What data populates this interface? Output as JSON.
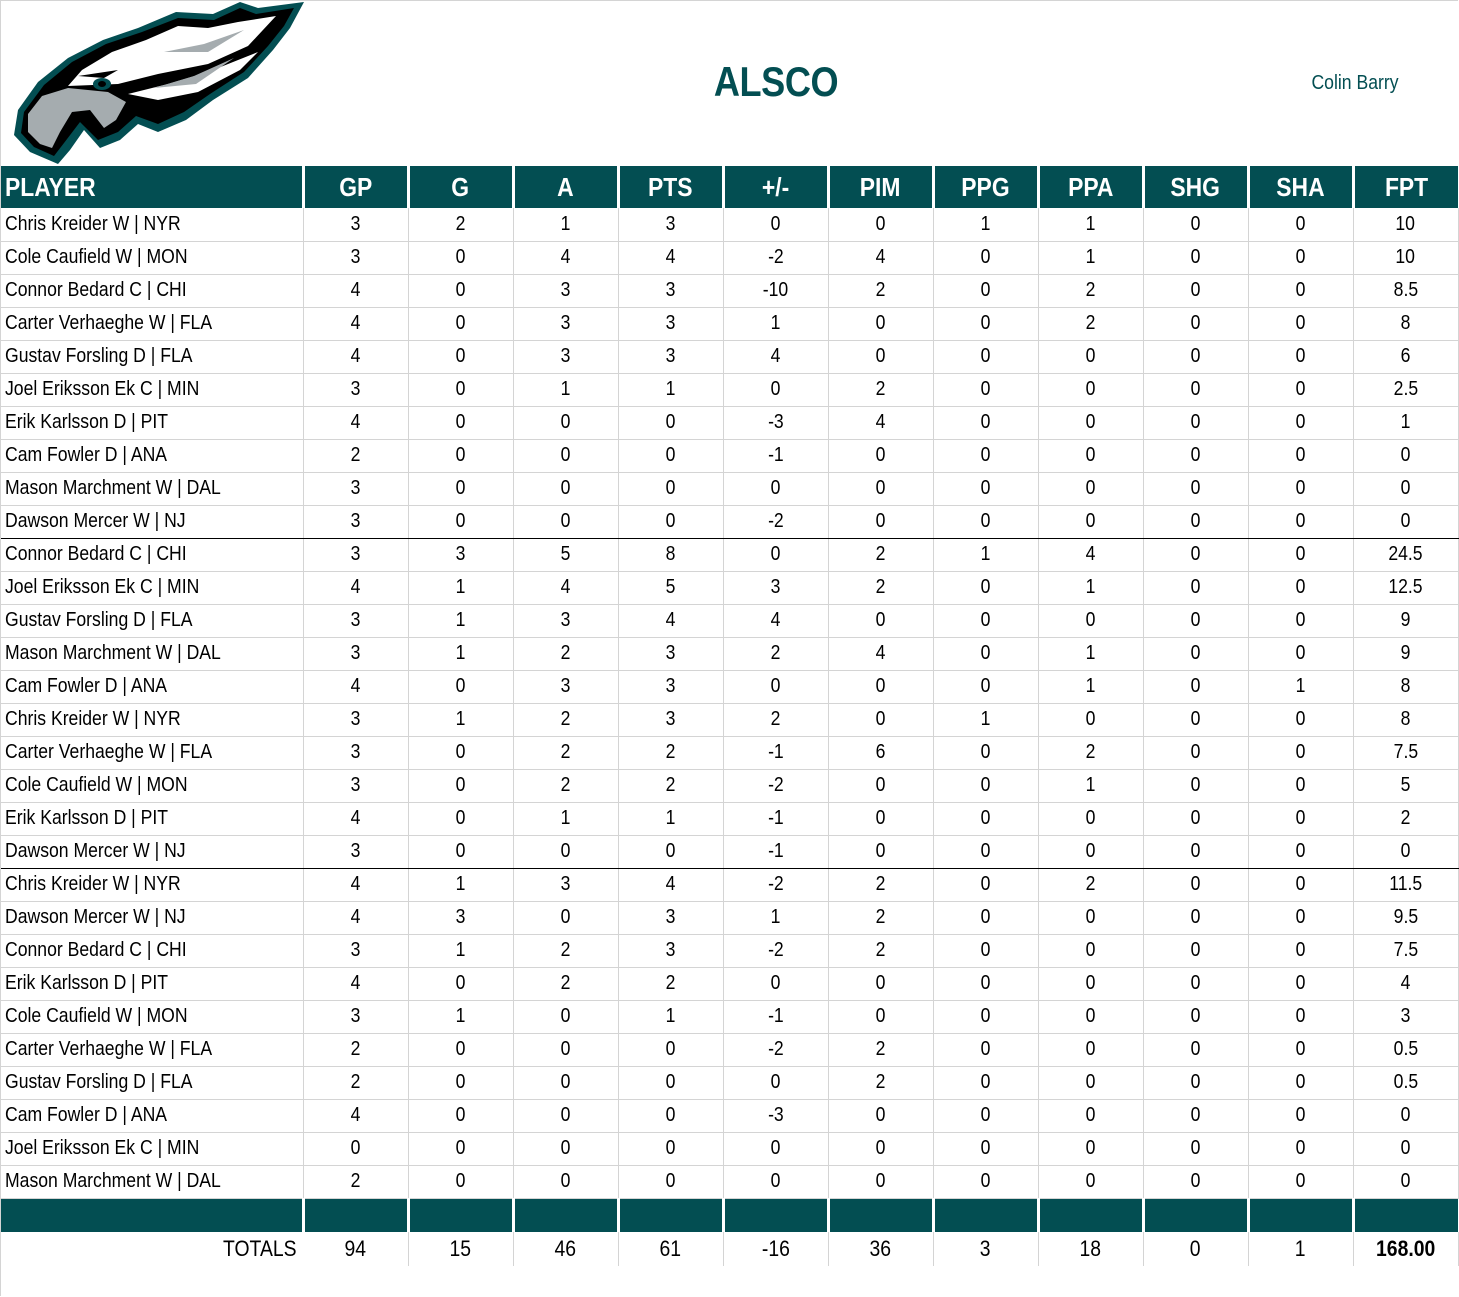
{
  "header": {
    "logo": "eagle-logo",
    "team_name": "ALSCO",
    "owner_name": "Colin Barry"
  },
  "colors": {
    "header_bg": "#034e52",
    "header_text": "#ffffff",
    "title_color": "#034e52",
    "grid_line": "#d4d4d4"
  },
  "table": {
    "columns": [
      "PLAYER",
      "GP",
      "G",
      "A",
      "PTS",
      "+/-",
      "PIM",
      "PPG",
      "PPA",
      "SHG",
      "SHA",
      "FPT"
    ],
    "groups": [
      {
        "rows": [
          [
            "Chris Kreider W | NYR",
            "3",
            "2",
            "1",
            "3",
            "0",
            "0",
            "1",
            "1",
            "0",
            "0",
            "10"
          ],
          [
            "Cole Caufield W | MON",
            "3",
            "0",
            "4",
            "4",
            "-2",
            "4",
            "0",
            "1",
            "0",
            "0",
            "10"
          ],
          [
            "Connor Bedard C | CHI",
            "4",
            "0",
            "3",
            "3",
            "-10",
            "2",
            "0",
            "2",
            "0",
            "0",
            "8.5"
          ],
          [
            "Carter Verhaeghe W | FLA",
            "4",
            "0",
            "3",
            "3",
            "1",
            "0",
            "0",
            "2",
            "0",
            "0",
            "8"
          ],
          [
            "Gustav Forsling D | FLA",
            "4",
            "0",
            "3",
            "3",
            "4",
            "0",
            "0",
            "0",
            "0",
            "0",
            "6"
          ],
          [
            "Joel Eriksson Ek C | MIN",
            "3",
            "0",
            "1",
            "1",
            "0",
            "2",
            "0",
            "0",
            "0",
            "0",
            "2.5"
          ],
          [
            "Erik Karlsson D | PIT",
            "4",
            "0",
            "0",
            "0",
            "-3",
            "4",
            "0",
            "0",
            "0",
            "0",
            "1"
          ],
          [
            "Cam Fowler D | ANA",
            "2",
            "0",
            "0",
            "0",
            "-1",
            "0",
            "0",
            "0",
            "0",
            "0",
            "0"
          ],
          [
            "Mason Marchment W | DAL",
            "3",
            "0",
            "0",
            "0",
            "0",
            "0",
            "0",
            "0",
            "0",
            "0",
            "0"
          ],
          [
            "Dawson Mercer W | NJ",
            "3",
            "0",
            "0",
            "0",
            "-2",
            "0",
            "0",
            "0",
            "0",
            "0",
            "0"
          ]
        ]
      },
      {
        "rows": [
          [
            "Connor Bedard C | CHI",
            "3",
            "3",
            "5",
            "8",
            "0",
            "2",
            "1",
            "4",
            "0",
            "0",
            "24.5"
          ],
          [
            "Joel Eriksson Ek C | MIN",
            "4",
            "1",
            "4",
            "5",
            "3",
            "2",
            "0",
            "1",
            "0",
            "0",
            "12.5"
          ],
          [
            "Gustav Forsling D | FLA",
            "3",
            "1",
            "3",
            "4",
            "4",
            "0",
            "0",
            "0",
            "0",
            "0",
            "9"
          ],
          [
            "Mason Marchment W | DAL",
            "3",
            "1",
            "2",
            "3",
            "2",
            "4",
            "0",
            "1",
            "0",
            "0",
            "9"
          ],
          [
            "Cam Fowler D | ANA",
            "4",
            "0",
            "3",
            "3",
            "0",
            "0",
            "0",
            "1",
            "0",
            "1",
            "8"
          ],
          [
            "Chris Kreider W | NYR",
            "3",
            "1",
            "2",
            "3",
            "2",
            "0",
            "1",
            "0",
            "0",
            "0",
            "8"
          ],
          [
            "Carter Verhaeghe W | FLA",
            "3",
            "0",
            "2",
            "2",
            "-1",
            "6",
            "0",
            "2",
            "0",
            "0",
            "7.5"
          ],
          [
            "Cole Caufield W | MON",
            "3",
            "0",
            "2",
            "2",
            "-2",
            "0",
            "0",
            "1",
            "0",
            "0",
            "5"
          ],
          [
            "Erik Karlsson D | PIT",
            "4",
            "0",
            "1",
            "1",
            "-1",
            "0",
            "0",
            "0",
            "0",
            "0",
            "2"
          ],
          [
            "Dawson Mercer W | NJ",
            "3",
            "0",
            "0",
            "0",
            "-1",
            "0",
            "0",
            "0",
            "0",
            "0",
            "0"
          ]
        ]
      },
      {
        "rows": [
          [
            "Chris Kreider W | NYR",
            "4",
            "1",
            "3",
            "4",
            "-2",
            "2",
            "0",
            "2",
            "0",
            "0",
            "11.5"
          ],
          [
            "Dawson Mercer W | NJ",
            "4",
            "3",
            "0",
            "3",
            "1",
            "2",
            "0",
            "0",
            "0",
            "0",
            "9.5"
          ],
          [
            "Connor Bedard C | CHI",
            "3",
            "1",
            "2",
            "3",
            "-2",
            "2",
            "0",
            "0",
            "0",
            "0",
            "7.5"
          ],
          [
            "Erik Karlsson D | PIT",
            "4",
            "0",
            "2",
            "2",
            "0",
            "0",
            "0",
            "0",
            "0",
            "0",
            "4"
          ],
          [
            "Cole Caufield W | MON",
            "3",
            "1",
            "0",
            "1",
            "-1",
            "0",
            "0",
            "0",
            "0",
            "0",
            "3"
          ],
          [
            "Carter Verhaeghe W | FLA",
            "2",
            "0",
            "0",
            "0",
            "-2",
            "2",
            "0",
            "0",
            "0",
            "0",
            "0.5"
          ],
          [
            "Gustav Forsling D | FLA",
            "2",
            "0",
            "0",
            "0",
            "0",
            "2",
            "0",
            "0",
            "0",
            "0",
            "0.5"
          ],
          [
            "Cam Fowler D | ANA",
            "4",
            "0",
            "0",
            "0",
            "-3",
            "0",
            "0",
            "0",
            "0",
            "0",
            "0"
          ],
          [
            "Joel Eriksson Ek C | MIN",
            "0",
            "0",
            "0",
            "0",
            "0",
            "0",
            "0",
            "0",
            "0",
            "0",
            "0"
          ],
          [
            "Mason Marchment W | DAL",
            "2",
            "0",
            "0",
            "0",
            "0",
            "0",
            "0",
            "0",
            "0",
            "0",
            "0"
          ]
        ]
      }
    ],
    "totals": {
      "label": "TOTALS",
      "values": [
        "94",
        "15",
        "46",
        "61",
        "-16",
        "36",
        "3",
        "18",
        "0",
        "1",
        "168.00"
      ]
    }
  }
}
